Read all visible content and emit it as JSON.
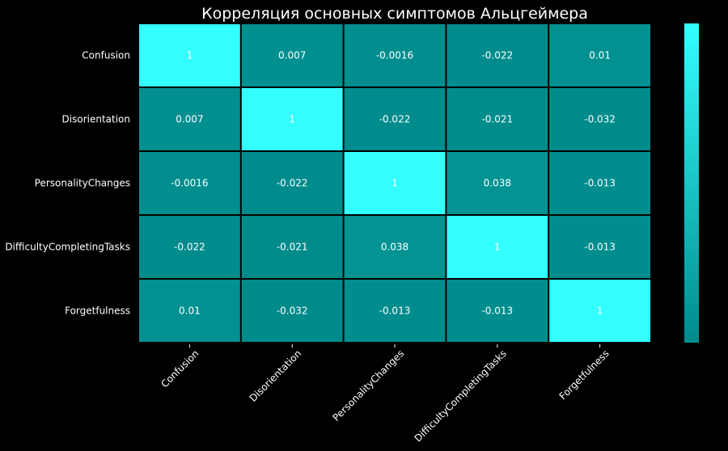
{
  "chart_data": {
    "type": "heatmap",
    "title": "Корреляция основных симптомов Альцгеймера",
    "rows": [
      "Confusion",
      "Disorientation",
      "PersonalityChanges",
      "DifficultyCompletingTasks",
      "Forgetfulness"
    ],
    "columns": [
      "Confusion",
      "Disorientation",
      "PersonalityChanges",
      "DifficultyCompletingTasks",
      "Forgetfulness"
    ],
    "values": [
      [
        1,
        0.007,
        -0.0016,
        -0.022,
        0.01
      ],
      [
        0.007,
        1,
        -0.022,
        -0.021,
        -0.032
      ],
      [
        -0.0016,
        -0.022,
        1,
        0.038,
        -0.013
      ],
      [
        -0.022,
        -0.021,
        0.038,
        1,
        -0.013
      ],
      [
        0.01,
        -0.032,
        -0.013,
        -0.013,
        1
      ]
    ],
    "labels": [
      [
        "1",
        "0.007",
        "-0.0016",
        "-0.022",
        "0.01"
      ],
      [
        "0.007",
        "1",
        "-0.022",
        "-0.021",
        "-0.032"
      ],
      [
        "-0.0016",
        "-0.022",
        "1",
        "0.038",
        "-0.013"
      ],
      [
        "-0.022",
        "-0.021",
        "0.038",
        "1",
        "-0.013"
      ],
      [
        "0.01",
        "-0.032",
        "-0.013",
        "-0.013",
        "1"
      ]
    ],
    "colormap": {
      "low": "#008b8b",
      "high": "#33ffff"
    },
    "vmin": -0.032,
    "vmax": 1,
    "colorbar": true,
    "colorbar_ticks": [],
    "background": "#000000",
    "gridline_color": "#000000",
    "text_color": "#ffffff"
  }
}
